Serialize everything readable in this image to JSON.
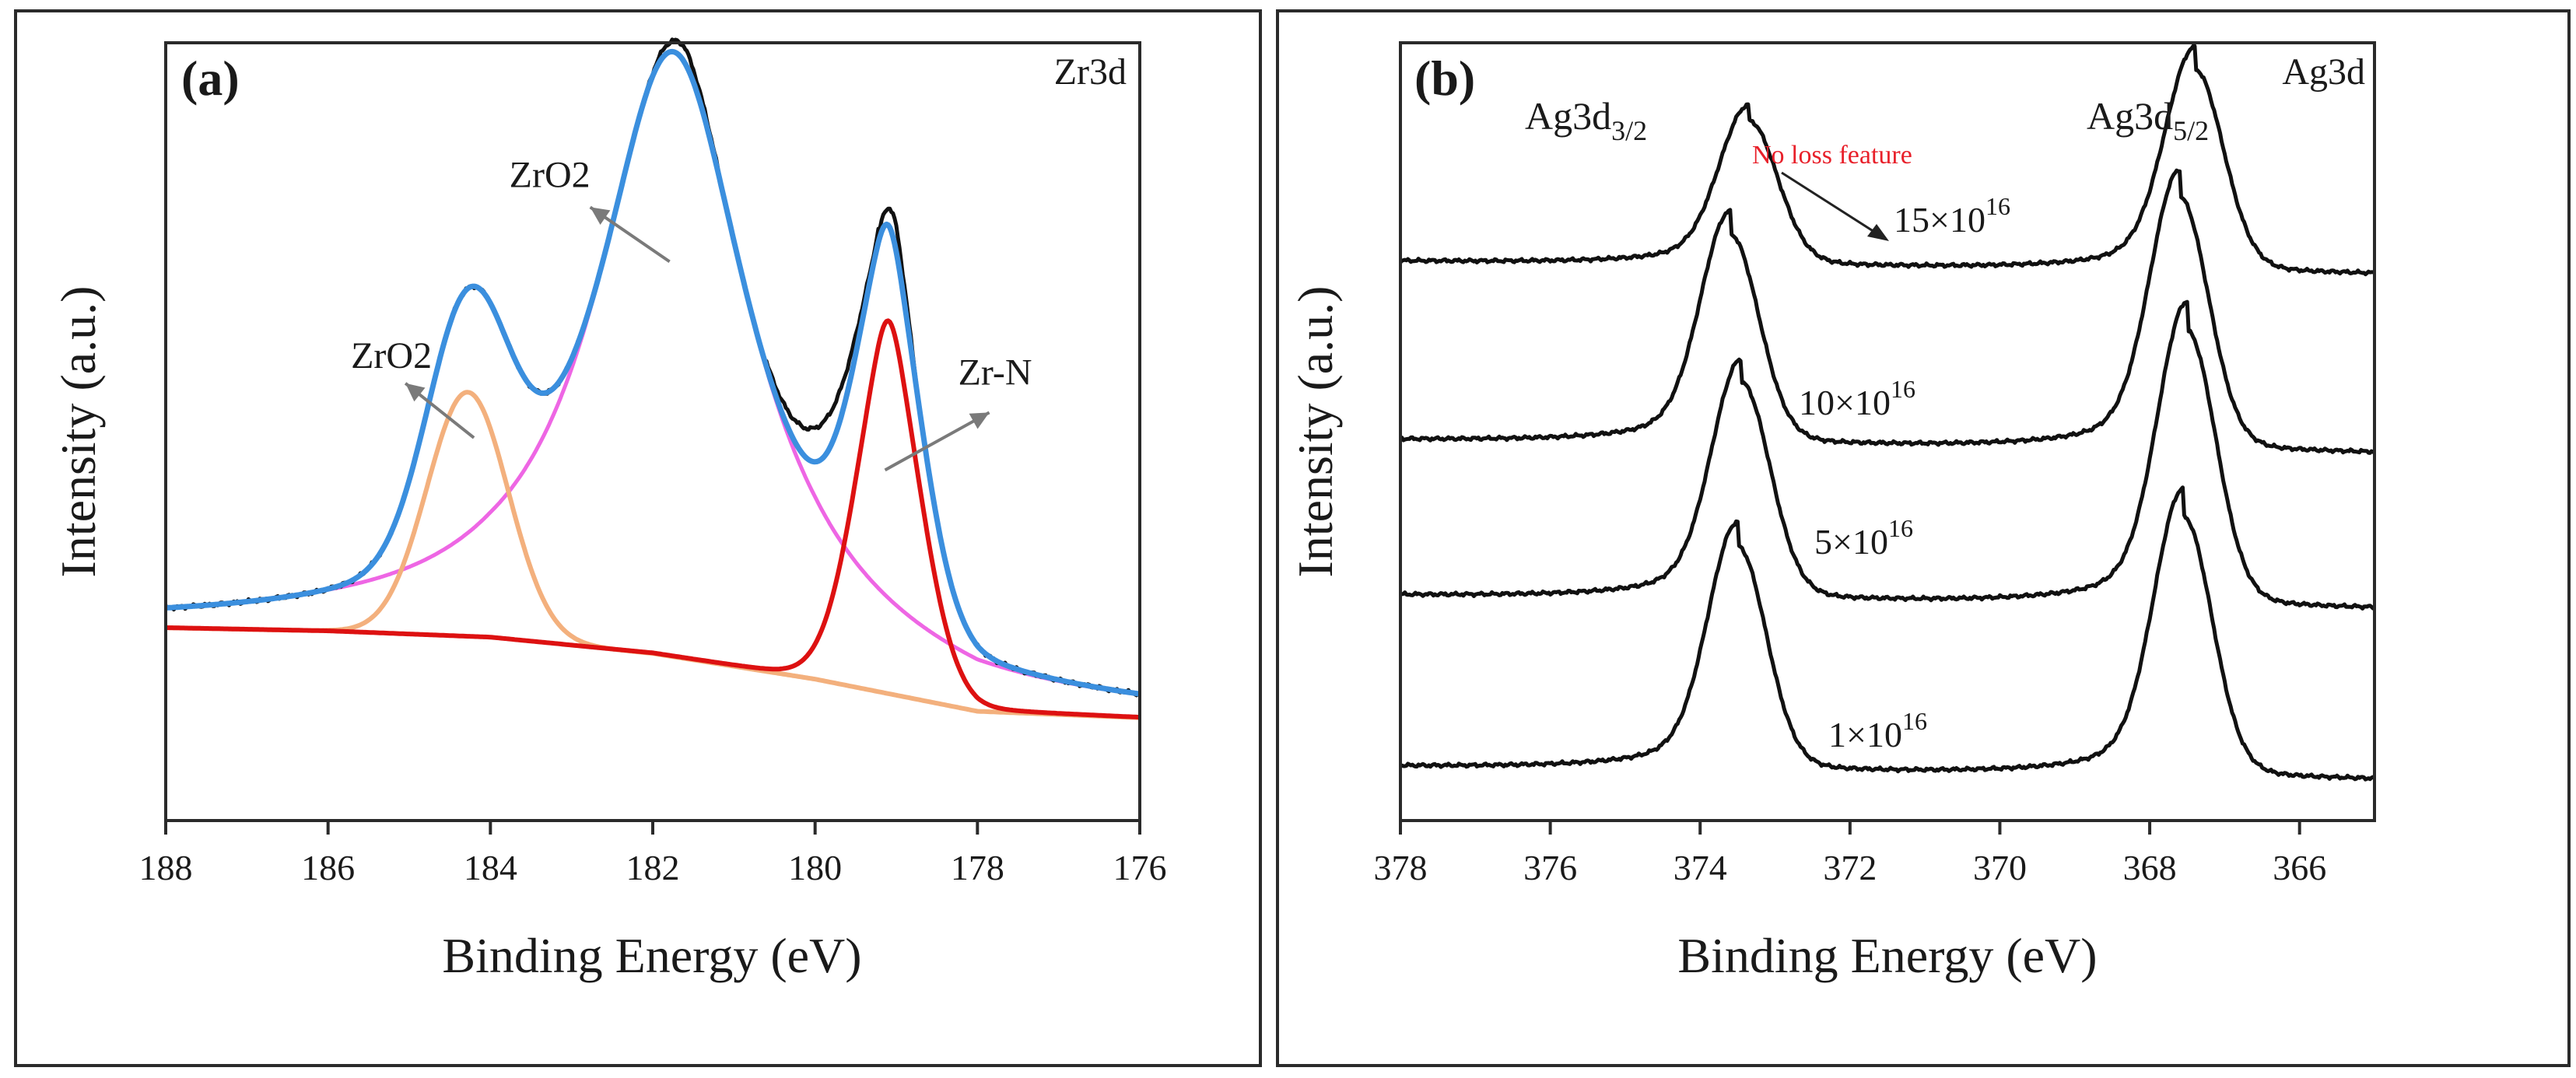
{
  "chart_data": [
    {
      "type": "line",
      "panel": "(a)",
      "corner_label": "Zr3d",
      "xlabel": "Binding Energy (eV)",
      "ylabel": "Intensity (a.u.)",
      "xlim": [
        188,
        176
      ],
      "ylim": [
        -6,
        115
      ],
      "x_ticks": [
        188,
        186,
        184,
        182,
        180,
        178,
        176
      ],
      "background": {
        "name": "Background",
        "color": "#a0a0a0",
        "points": [
          [
            188,
            24
          ],
          [
            186,
            23.5
          ],
          [
            184,
            22.5
          ],
          [
            182,
            20
          ],
          [
            180,
            16
          ],
          [
            178,
            11
          ],
          [
            176,
            10
          ]
        ]
      },
      "peaks": [
        {
          "name": "ZrO2",
          "color": "#f3b07d",
          "center": 184.28,
          "height": 38,
          "sigma": 0.5
        },
        {
          "name": "ZrO2",
          "color": "#ee66e4",
          "center": 181.75,
          "height": 94,
          "gamma": 1.15
        },
        {
          "name": "Zr-N",
          "color": "#dd1111",
          "center": 179.1,
          "height": 58,
          "sigma": 0.42,
          "gamma": 0.25
        }
      ],
      "series": [
        {
          "name": "Measured",
          "color": "#111111"
        },
        {
          "name": "Fitted envelope",
          "color": "#3b8fde"
        }
      ],
      "annotations": [
        {
          "text": "ZrO2",
          "at": [
            184.28,
            59
          ]
        },
        {
          "text": "ZrO2",
          "at": [
            181.85,
            87
          ]
        },
        {
          "text": "Zr-N",
          "at": [
            179.1,
            57
          ]
        }
      ]
    },
    {
      "type": "line",
      "panel": "(b)",
      "corner_label": "Ag3d",
      "xlabel": "Binding Energy (eV)",
      "ylabel": "Intensity (a.u.)",
      "xlim": [
        378,
        365
      ],
      "ylim": [
        0,
        100
      ],
      "x_ticks": [
        378,
        376,
        374,
        372,
        370,
        368,
        366
      ],
      "peak_labels": [
        {
          "base": "Ag3d",
          "sub": "3/2",
          "position": 373.5
        },
        {
          "base": "Ag3d",
          "sub": "5/2",
          "position": 367.5
        }
      ],
      "note": "No loss feature",
      "note_color": "#e8202a",
      "series": [
        {
          "name": "1×10^16",
          "label_base": "1×10",
          "label_exp": "16",
          "baseline": 6,
          "peak1": 373.5,
          "peak2": 367.55,
          "h1": 31,
          "h2": 36
        },
        {
          "name": "5×10^16",
          "label_base": "5×10",
          "label_exp": "16",
          "baseline": 28,
          "peak1": 373.45,
          "peak2": 367.5,
          "h1": 30,
          "h2": 38
        },
        {
          "name": "10×10^16",
          "label_base": "10×10",
          "label_exp": "16",
          "baseline": 48,
          "peak1": 373.6,
          "peak2": 367.6,
          "h1": 29,
          "h2": 35
        },
        {
          "name": "15×10^16",
          "label_base": "15×10",
          "label_exp": "16",
          "baseline": 71,
          "peak1": 373.35,
          "peak2": 367.4,
          "h1": 20,
          "h2": 28
        }
      ]
    }
  ]
}
